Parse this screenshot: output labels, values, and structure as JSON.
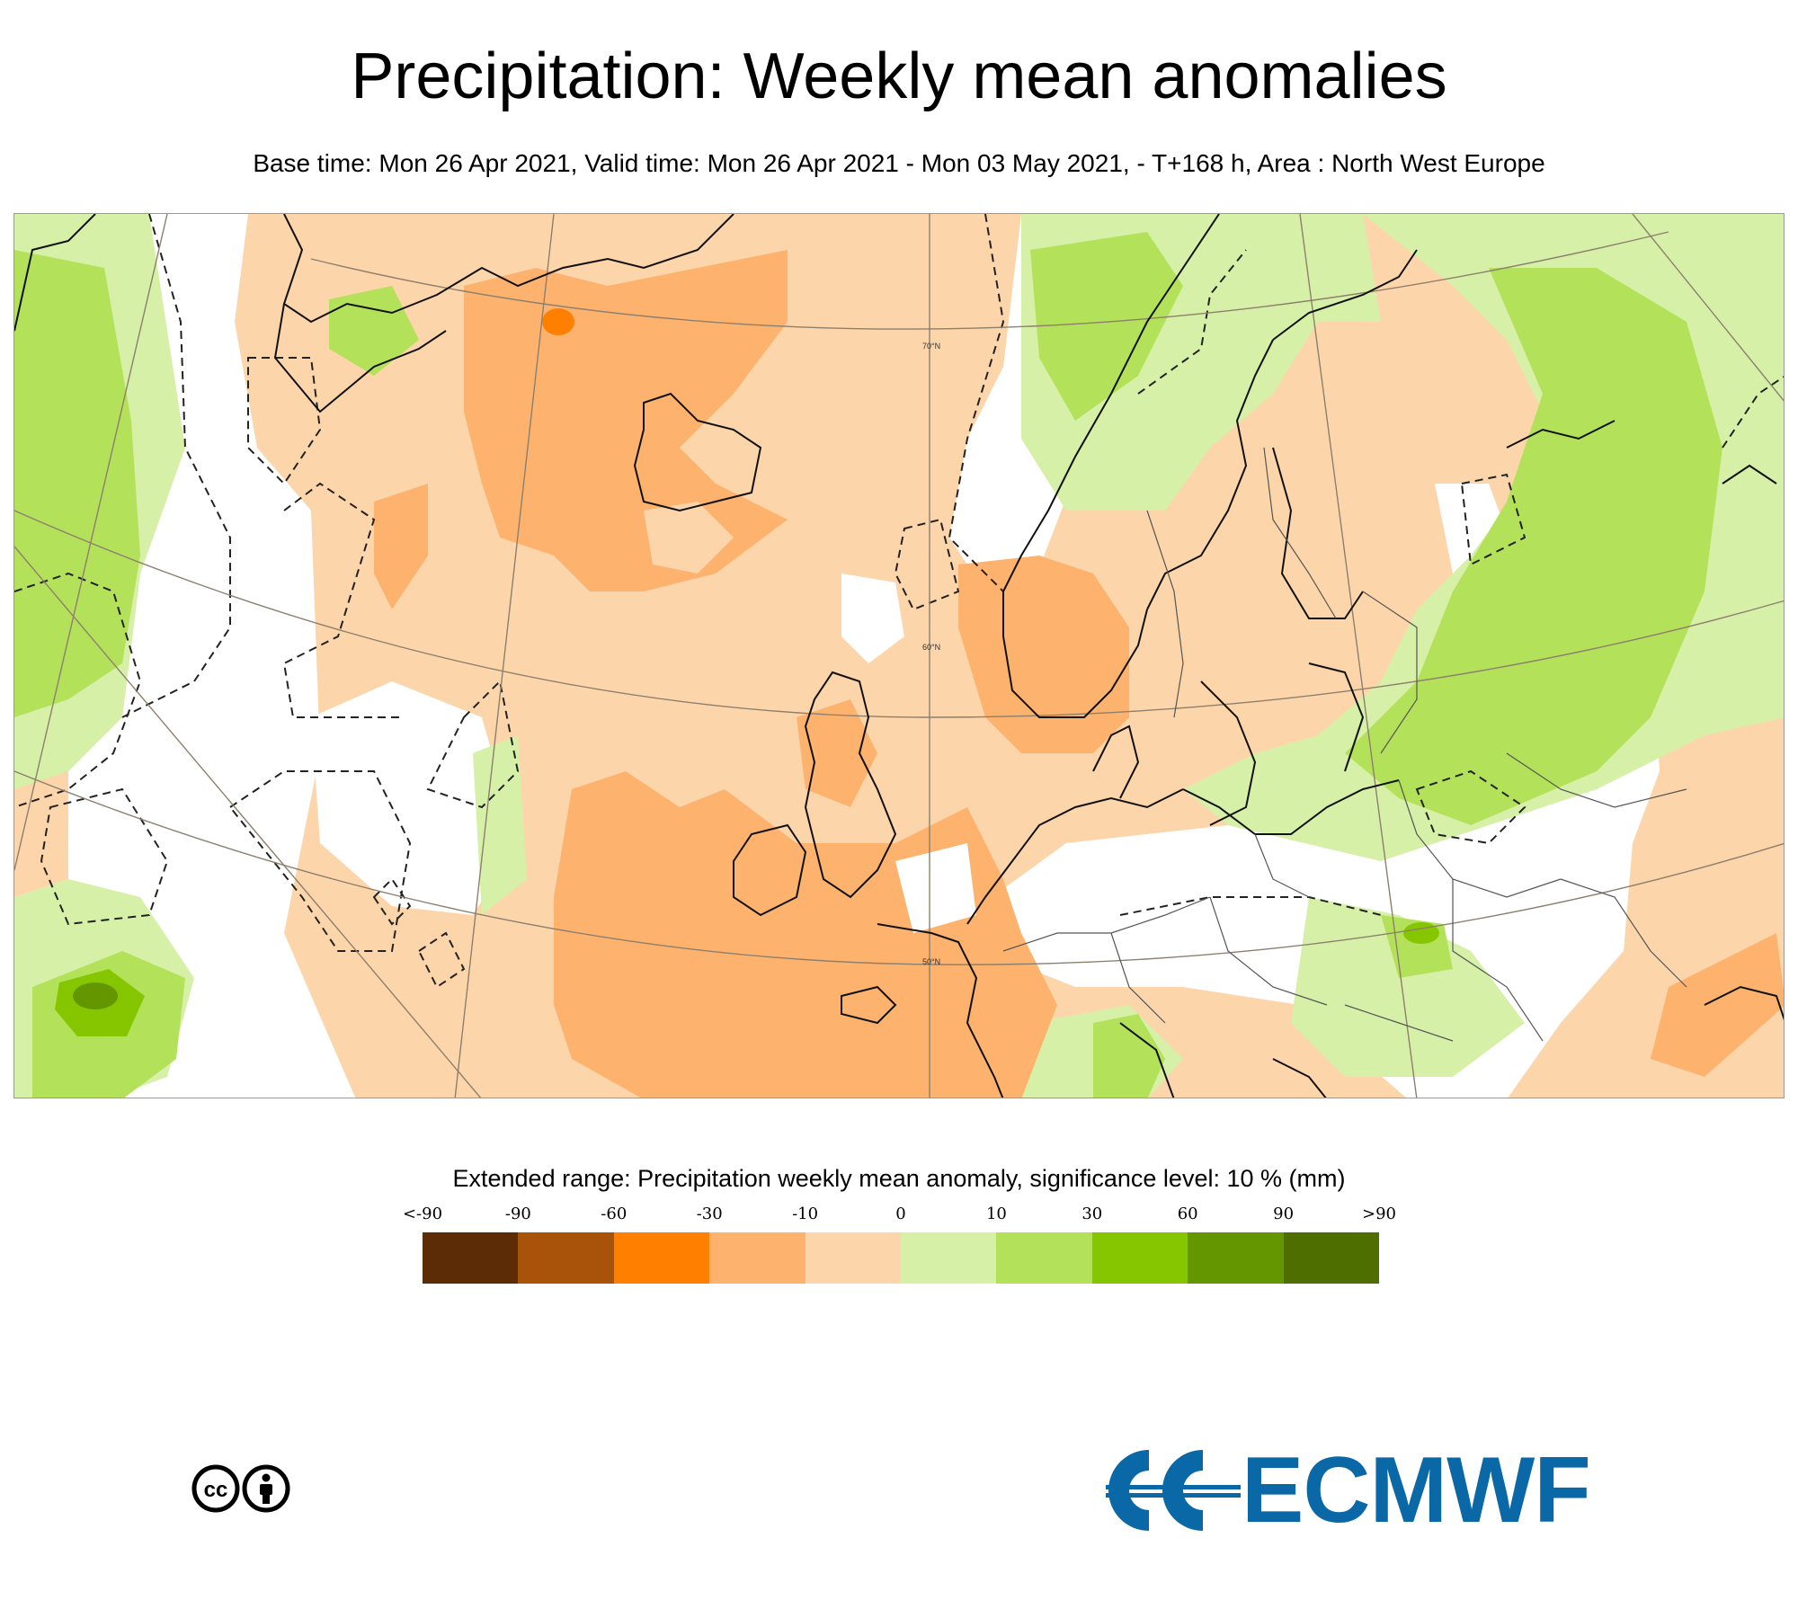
{
  "title": "Precipitation: Weekly mean anomalies",
  "subtitle": "Base time: Mon 26 Apr 2021, Valid time: Mon 26 Apr 2021 - Mon 03 May 2021, - T+168 h, Area : North West Europe",
  "map": {
    "area": "North West Europe",
    "latitude_labels": [
      "70°N",
      "60°N",
      "50°N"
    ]
  },
  "legend": {
    "title": "Extended range: Precipitation weekly mean anomaly, significance level: 10 % (mm)",
    "labels": [
      "<-90",
      "-90",
      "-60",
      "-30",
      "-10",
      "0",
      "10",
      "30",
      "60",
      "90",
      ">90"
    ],
    "colors": [
      "#5b2c05",
      "#a8520a",
      "#ff8000",
      "#fdb26d",
      "#fdd5aa",
      "#d6f0a8",
      "#b4e15a",
      "#86c600",
      "#649600",
      "#4e6e00"
    ]
  },
  "logos": {
    "license": "cc-by",
    "brand": "ECMWF"
  }
}
